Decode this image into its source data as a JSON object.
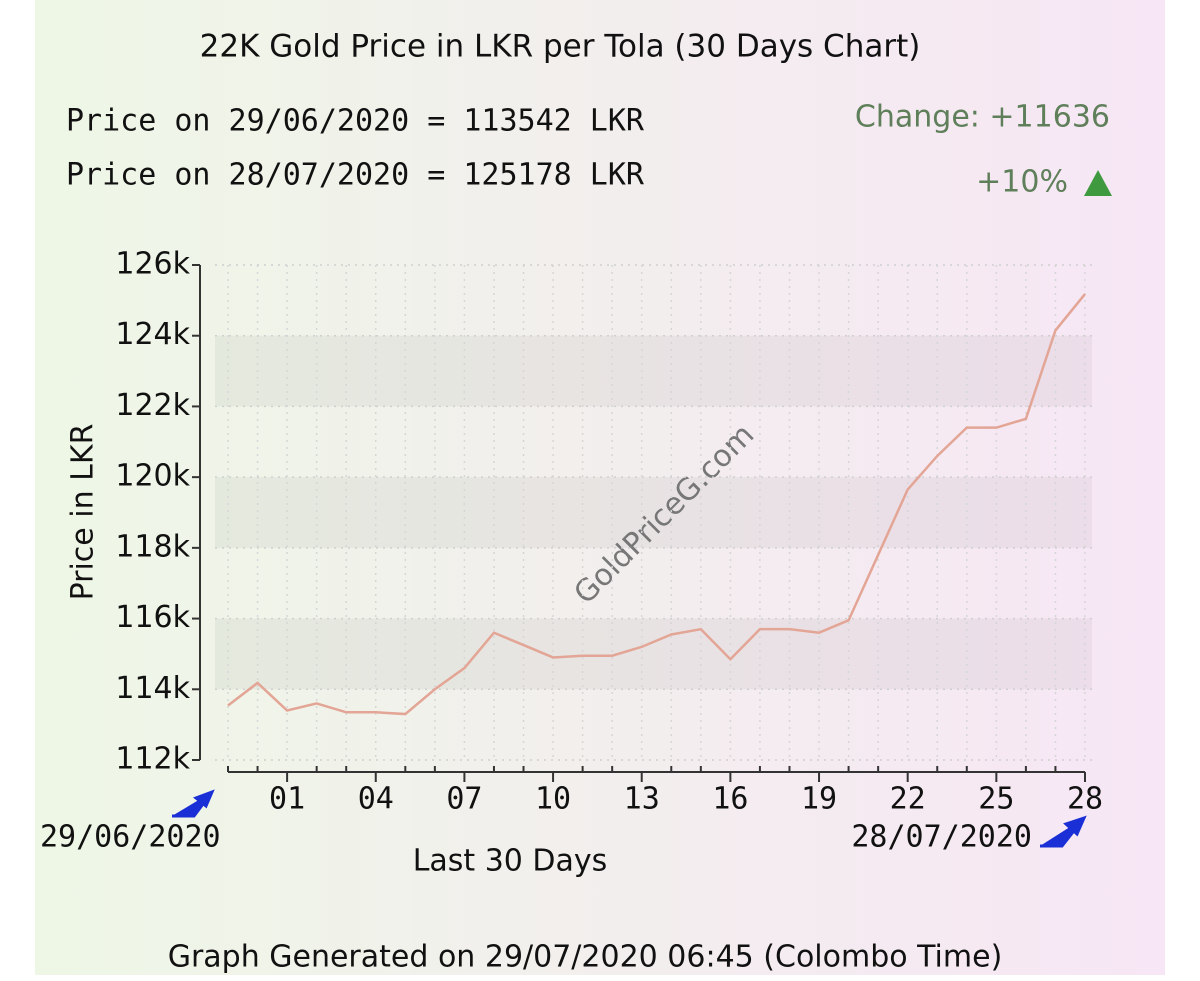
{
  "chart_data": {
    "type": "line",
    "title": "22K Gold Price in LKR per Tola (30 Days Chart)",
    "start_price_text": "Price on 29/06/2020 = 113542 LKR",
    "end_price_text": "Price on 28/07/2020 = 125178 LKR",
    "change_text": "Change: +11636",
    "change_percent_text": "+10%",
    "ylabel": "Price in LKR",
    "xlabel": "Last 30 Days",
    "start_date": "29/06/2020",
    "end_date": "28/07/2020",
    "watermark": "GoldPriceG.com",
    "footer": "Graph Generated on 29/07/2020 06:45 (Colombo Time)",
    "categories": [
      null,
      null,
      "01",
      null,
      null,
      "04",
      null,
      null,
      "07",
      null,
      null,
      "10",
      null,
      null,
      "13",
      null,
      null,
      "16",
      null,
      null,
      "19",
      null,
      null,
      "22",
      null,
      null,
      "25",
      null,
      null,
      "28"
    ],
    "values": [
      113542,
      114180,
      113400,
      113600,
      113350,
      113350,
      113300,
      114000,
      114600,
      115600,
      115250,
      114900,
      114950,
      114950,
      115200,
      115550,
      115700,
      114850,
      115700,
      115700,
      115600,
      115950,
      117800,
      119650,
      120600,
      121400,
      121400,
      121650,
      124150,
      125178
    ],
    "color": "#e3a595",
    "ylim": [
      112000,
      126000
    ],
    "yticks": [
      {
        "value": 112000,
        "label": "112k"
      },
      {
        "value": 114000,
        "label": "114k"
      },
      {
        "value": 116000,
        "label": "116k"
      },
      {
        "value": 118000,
        "label": "118k"
      },
      {
        "value": 120000,
        "label": "120k"
      },
      {
        "value": 122000,
        "label": "122k"
      },
      {
        "value": 124000,
        "label": "124k"
      },
      {
        "value": 126000,
        "label": "126k"
      }
    ],
    "grid": true
  }
}
